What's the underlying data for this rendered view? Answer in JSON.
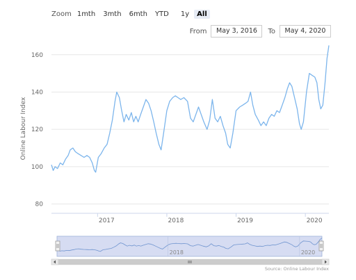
{
  "range_selector": {
    "zoom_label": "Zoom",
    "buttons": [
      "1mth",
      "3mth",
      "6mth",
      "YTD",
      "1y",
      "All"
    ],
    "active_index": 5,
    "from_label": "From",
    "from_value": "May 3, 2016",
    "to_label": "To",
    "to_value": "May 4, 2020"
  },
  "source_credit": "Source: Online Labour Index",
  "colors": {
    "line": "#7cb5ec",
    "navigator_fill": "#d6dcf2",
    "grid": "#e6e6e6"
  },
  "chart_data": {
    "type": "line",
    "title": "",
    "ylabel": "Online Labour Index",
    "xlabel": "",
    "ylim": [
      75,
      167
    ],
    "xlim": [
      "2016-05-03",
      "2020-05-04"
    ],
    "y_ticks": [
      80,
      100,
      120,
      140,
      160
    ],
    "x_ticks": [
      {
        "label": "2017",
        "date": "2017-01-01"
      },
      {
        "label": "2018",
        "date": "2018-01-01"
      },
      {
        "label": "2019",
        "date": "2019-01-01"
      },
      {
        "label": "2020",
        "date": "2020-01-01"
      }
    ],
    "navigator_ticks": [
      {
        "label": "2018",
        "date": "2018-01-01"
      },
      {
        "label": "2020",
        "date": "2020-01-01"
      }
    ],
    "grid": true,
    "series": [
      {
        "values": [
          [
            "2016-05-03",
            101
          ],
          [
            "2016-05-12",
            98
          ],
          [
            "2016-05-22",
            100
          ],
          [
            "2016-06-04",
            99
          ],
          [
            "2016-06-18",
            102
          ],
          [
            "2016-07-02",
            101
          ],
          [
            "2016-07-16",
            104
          ],
          [
            "2016-07-30",
            106
          ],
          [
            "2016-08-10",
            109
          ],
          [
            "2016-08-24",
            110
          ],
          [
            "2016-09-06",
            108
          ],
          [
            "2016-09-20",
            107
          ],
          [
            "2016-10-06",
            106
          ],
          [
            "2016-10-22",
            105
          ],
          [
            "2016-11-06",
            106
          ],
          [
            "2016-11-20",
            105
          ],
          [
            "2016-12-04",
            102
          ],
          [
            "2016-12-15",
            98
          ],
          [
            "2016-12-22",
            97
          ],
          [
            "2017-01-05",
            105
          ],
          [
            "2017-01-20",
            107
          ],
          [
            "2017-02-05",
            110
          ],
          [
            "2017-02-20",
            112
          ],
          [
            "2017-03-06",
            118
          ],
          [
            "2017-03-20",
            125
          ],
          [
            "2017-04-03",
            135
          ],
          [
            "2017-04-12",
            140
          ],
          [
            "2017-04-26",
            137
          ],
          [
            "2017-05-08",
            130
          ],
          [
            "2017-05-20",
            124
          ],
          [
            "2017-06-01",
            128
          ],
          [
            "2017-06-15",
            125
          ],
          [
            "2017-06-28",
            129
          ],
          [
            "2017-07-10",
            124
          ],
          [
            "2017-07-22",
            127
          ],
          [
            "2017-08-03",
            124
          ],
          [
            "2017-08-16",
            128
          ],
          [
            "2017-08-30",
            132
          ],
          [
            "2017-09-13",
            136
          ],
          [
            "2017-09-27",
            134
          ],
          [
            "2017-10-10",
            130
          ],
          [
            "2017-10-24",
            124
          ],
          [
            "2017-11-06",
            118
          ],
          [
            "2017-11-20",
            112
          ],
          [
            "2017-12-02",
            109
          ],
          [
            "2017-12-15",
            118
          ],
          [
            "2018-01-01",
            130
          ],
          [
            "2018-01-16",
            135
          ],
          [
            "2018-02-01",
            137
          ],
          [
            "2018-02-15",
            138
          ],
          [
            "2018-03-01",
            137
          ],
          [
            "2018-03-15",
            136
          ],
          [
            "2018-04-01",
            137
          ],
          [
            "2018-04-20",
            135
          ],
          [
            "2018-05-06",
            126
          ],
          [
            "2018-05-20",
            124
          ],
          [
            "2018-06-03",
            128
          ],
          [
            "2018-06-17",
            132
          ],
          [
            "2018-07-01",
            128
          ],
          [
            "2018-07-15",
            124
          ],
          [
            "2018-08-01",
            120
          ],
          [
            "2018-08-15",
            125
          ],
          [
            "2018-08-29",
            136
          ],
          [
            "2018-09-12",
            126
          ],
          [
            "2018-09-26",
            124
          ],
          [
            "2018-10-10",
            127
          ],
          [
            "2018-10-24",
            122
          ],
          [
            "2018-11-07",
            118
          ],
          [
            "2018-11-18",
            112
          ],
          [
            "2018-12-01",
            110
          ],
          [
            "2018-12-15",
            118
          ],
          [
            "2019-01-01",
            130
          ],
          [
            "2019-01-20",
            132
          ],
          [
            "2019-02-05",
            133
          ],
          [
            "2019-02-20",
            134
          ],
          [
            "2019-03-05",
            135
          ],
          [
            "2019-03-18",
            140
          ],
          [
            "2019-03-30",
            133
          ],
          [
            "2019-04-12",
            128
          ],
          [
            "2019-04-28",
            125
          ],
          [
            "2019-05-12",
            122
          ],
          [
            "2019-05-26",
            124
          ],
          [
            "2019-06-09",
            122
          ],
          [
            "2019-06-23",
            126
          ],
          [
            "2019-07-07",
            128
          ],
          [
            "2019-07-21",
            127
          ],
          [
            "2019-08-04",
            130
          ],
          [
            "2019-08-18",
            129
          ],
          [
            "2019-09-01",
            133
          ],
          [
            "2019-09-15",
            137
          ],
          [
            "2019-09-29",
            142
          ],
          [
            "2019-10-10",
            145
          ],
          [
            "2019-10-22",
            143
          ],
          [
            "2019-11-05",
            137
          ],
          [
            "2019-11-19",
            131
          ],
          [
            "2019-12-01",
            123
          ],
          [
            "2019-12-10",
            120
          ],
          [
            "2019-12-22",
            124
          ],
          [
            "2020-01-07",
            140
          ],
          [
            "2020-01-22",
            150
          ],
          [
            "2020-02-05",
            149
          ],
          [
            "2020-02-20",
            148
          ],
          [
            "2020-03-02",
            145
          ],
          [
            "2020-03-12",
            136
          ],
          [
            "2020-03-22",
            131
          ],
          [
            "2020-04-02",
            133
          ],
          [
            "2020-04-14",
            145
          ],
          [
            "2020-04-24",
            158
          ],
          [
            "2020-05-04",
            165
          ]
        ]
      }
    ]
  }
}
